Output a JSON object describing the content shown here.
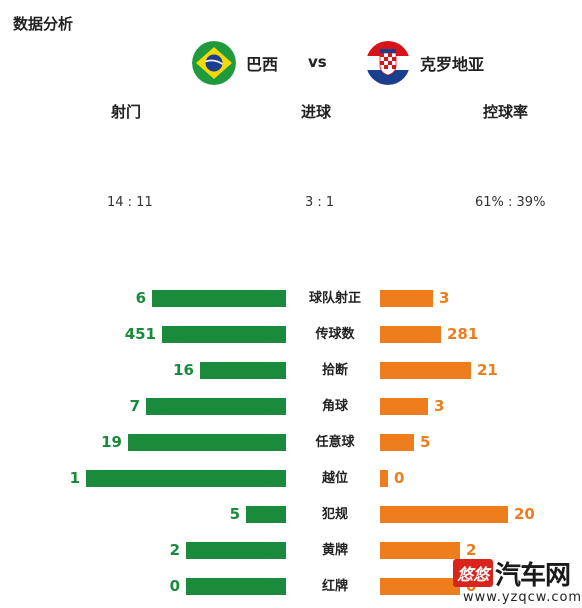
{
  "title": "数据分析",
  "teams": {
    "home": {
      "name": "巴西",
      "flag": "brazil-flag-icon"
    },
    "vs": "vs",
    "away": {
      "name": "克罗地亚",
      "flag": "croatia-flag-icon"
    }
  },
  "summary": {
    "shots_label": "射门",
    "shots_value": "14 : 11",
    "goals_label": "进球",
    "goals_value": "3 : 1",
    "possession_label": "控球率",
    "possession_value": "61% : 39%"
  },
  "stats": [
    {
      "label": "球队射正",
      "home": "6",
      "away": "3"
    },
    {
      "label": "传球数",
      "home": "451",
      "away": "281"
    },
    {
      "label": "拾断",
      "home": "16",
      "away": "21"
    },
    {
      "label": "角球",
      "home": "7",
      "away": "3"
    },
    {
      "label": "任意球",
      "home": "19",
      "away": "5"
    },
    {
      "label": "越位",
      "home": "1",
      "away": "0"
    },
    {
      "label": "犯规",
      "home": "5",
      "away": "20"
    },
    {
      "label": "黄牌",
      "home": "2",
      "away": "2"
    },
    {
      "label": "红牌",
      "home": "0",
      "away": "0"
    }
  ],
  "bar_fraction": [
    {
      "home": 0.67,
      "away": 0.33
    },
    {
      "home": 0.62,
      "away": 0.38
    },
    {
      "home": 0.43,
      "away": 0.57
    },
    {
      "home": 0.7,
      "away": 0.3
    },
    {
      "home": 0.79,
      "away": 0.21
    },
    {
      "home": 1.0,
      "away": 0.0
    },
    {
      "home": 0.2,
      "away": 0.8
    },
    {
      "home": 0.5,
      "away": 0.5
    },
    {
      "home": 0.5,
      "away": 0.5
    }
  ],
  "colors": {
    "home": "#1a8b3a",
    "away": "#ee7d1e"
  },
  "watermark": {
    "badge": "悠悠",
    "mark": "汽车网",
    "url": "www.yzqcw.com"
  }
}
